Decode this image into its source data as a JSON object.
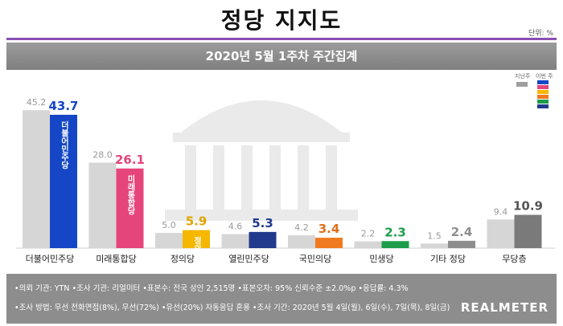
{
  "page": {
    "title": "정당 지지도",
    "unit": "단위: %",
    "subtitle": "2020년 5월 1주차 주간집계",
    "legend_prev": "지난주",
    "legend_curr": "이번 주",
    "legend_curr_colors": [
      "#1446c6",
      "#e5457a",
      "#f5b700",
      "#f07a1f",
      "#1c9d4a",
      "#213a8c"
    ],
    "footer_line1": "•의뢰 기관: YTN •조사 기관: 리얼미터 •표본수: 전국 성인 2,515명 •표본오차: 95% 신뢰수준 ±2.0%p •응답률: 4.3%",
    "footer_line2": "•조사 방법: 무선 전화면접(8%), 무선(72%) •유선(20%) 자동응답 혼용 •조사 기간: 2020년 5월 4일(월), 6일(수), 7일(목), 8일(금)",
    "brand": "REALMETER"
  },
  "chart_data": {
    "type": "bar",
    "categories": [
      "더불어민주당",
      "미래통합당",
      "정의당",
      "열린민주당",
      "국민의당",
      "민생당",
      "기타 정당",
      "무당층"
    ],
    "series": [
      {
        "name": "지난주",
        "values": [
          45.2,
          28.0,
          5.0,
          4.6,
          4.2,
          2.2,
          1.5,
          9.4
        ]
      },
      {
        "name": "이번 주",
        "values": [
          43.7,
          26.1,
          5.9,
          5.3,
          3.4,
          2.3,
          2.4,
          10.9
        ]
      }
    ],
    "colors_current": [
      "#1446c6",
      "#e5457a",
      "#f5b700",
      "#213a8c",
      "#f07a1f",
      "#1c9d4a",
      "#8d8d8d",
      "#7a7a7a"
    ],
    "value_label_colors": [
      "#1446c6",
      "#e5457a",
      "#e0a400",
      "#213a8c",
      "#e0701a",
      "#1c9d4a",
      "#8d8d8d",
      "#555555"
    ],
    "bar_inner_labels": [
      "더불어민주당",
      "미래통합당",
      "정의당",
      "",
      "",
      "",
      "",
      ""
    ],
    "ylim": [
      0,
      50
    ]
  }
}
